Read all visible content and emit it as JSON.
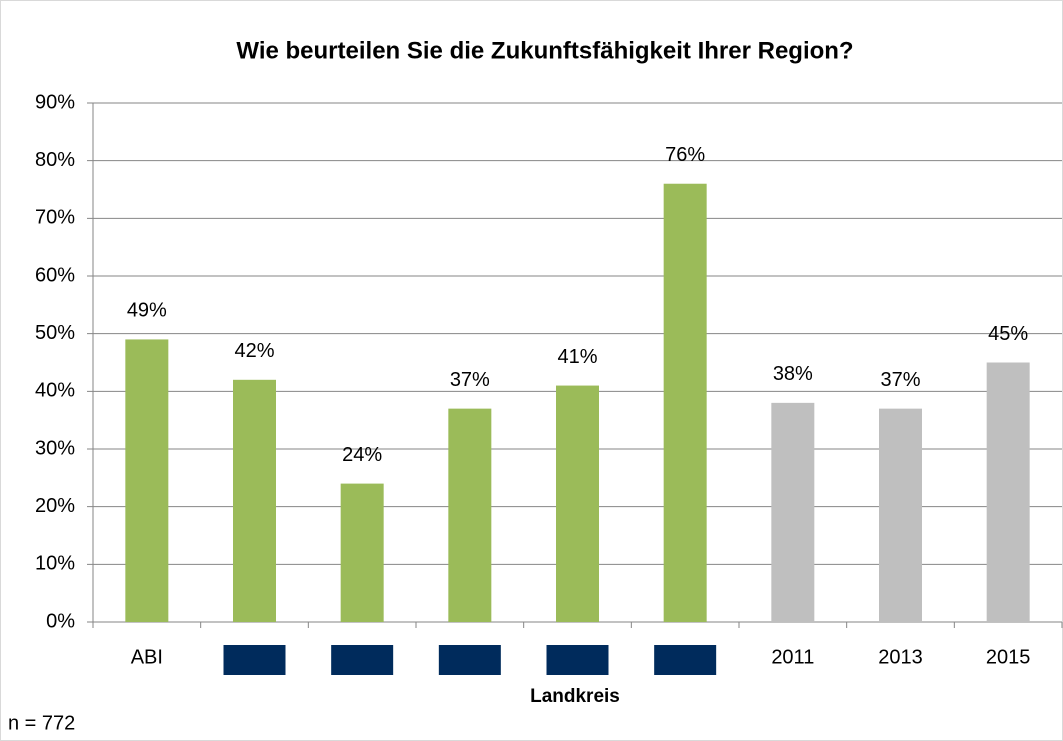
{
  "chart_data": {
    "type": "bar",
    "title": "Wie beurteilen Sie die Zukunftsfähigkeit Ihrer Region?",
    "categories": [
      "ABI",
      null,
      null,
      null,
      null,
      null,
      "2011",
      "2013",
      "2015"
    ],
    "values": [
      49,
      42,
      24,
      37,
      41,
      76,
      38,
      37,
      45
    ],
    "value_labels": [
      "49%",
      "42%",
      "24%",
      "37%",
      "41%",
      "76%",
      "38%",
      "37%",
      "45%"
    ],
    "colors": [
      "#9bbb59",
      "#9bbb59",
      "#9bbb59",
      "#9bbb59",
      "#9bbb59",
      "#9bbb59",
      "#bfbfbf",
      "#bfbfbf",
      "#bfbfbf"
    ],
    "x_label": "Landkreis",
    "note": "n = 772",
    "ylim": [
      0,
      90
    ],
    "yticks": [
      {
        "value": 0,
        "label": "0%"
      },
      {
        "value": 10,
        "label": "10%"
      },
      {
        "value": 20,
        "label": "20%"
      },
      {
        "value": 30,
        "label": "30%"
      },
      {
        "value": 40,
        "label": "40%"
      },
      {
        "value": 50,
        "label": "50%"
      },
      {
        "value": 60,
        "label": "60%"
      },
      {
        "value": 70,
        "label": "70%"
      },
      {
        "value": 80,
        "label": "80%"
      },
      {
        "value": 90,
        "label": "90%"
      }
    ],
    "grid": true
  }
}
